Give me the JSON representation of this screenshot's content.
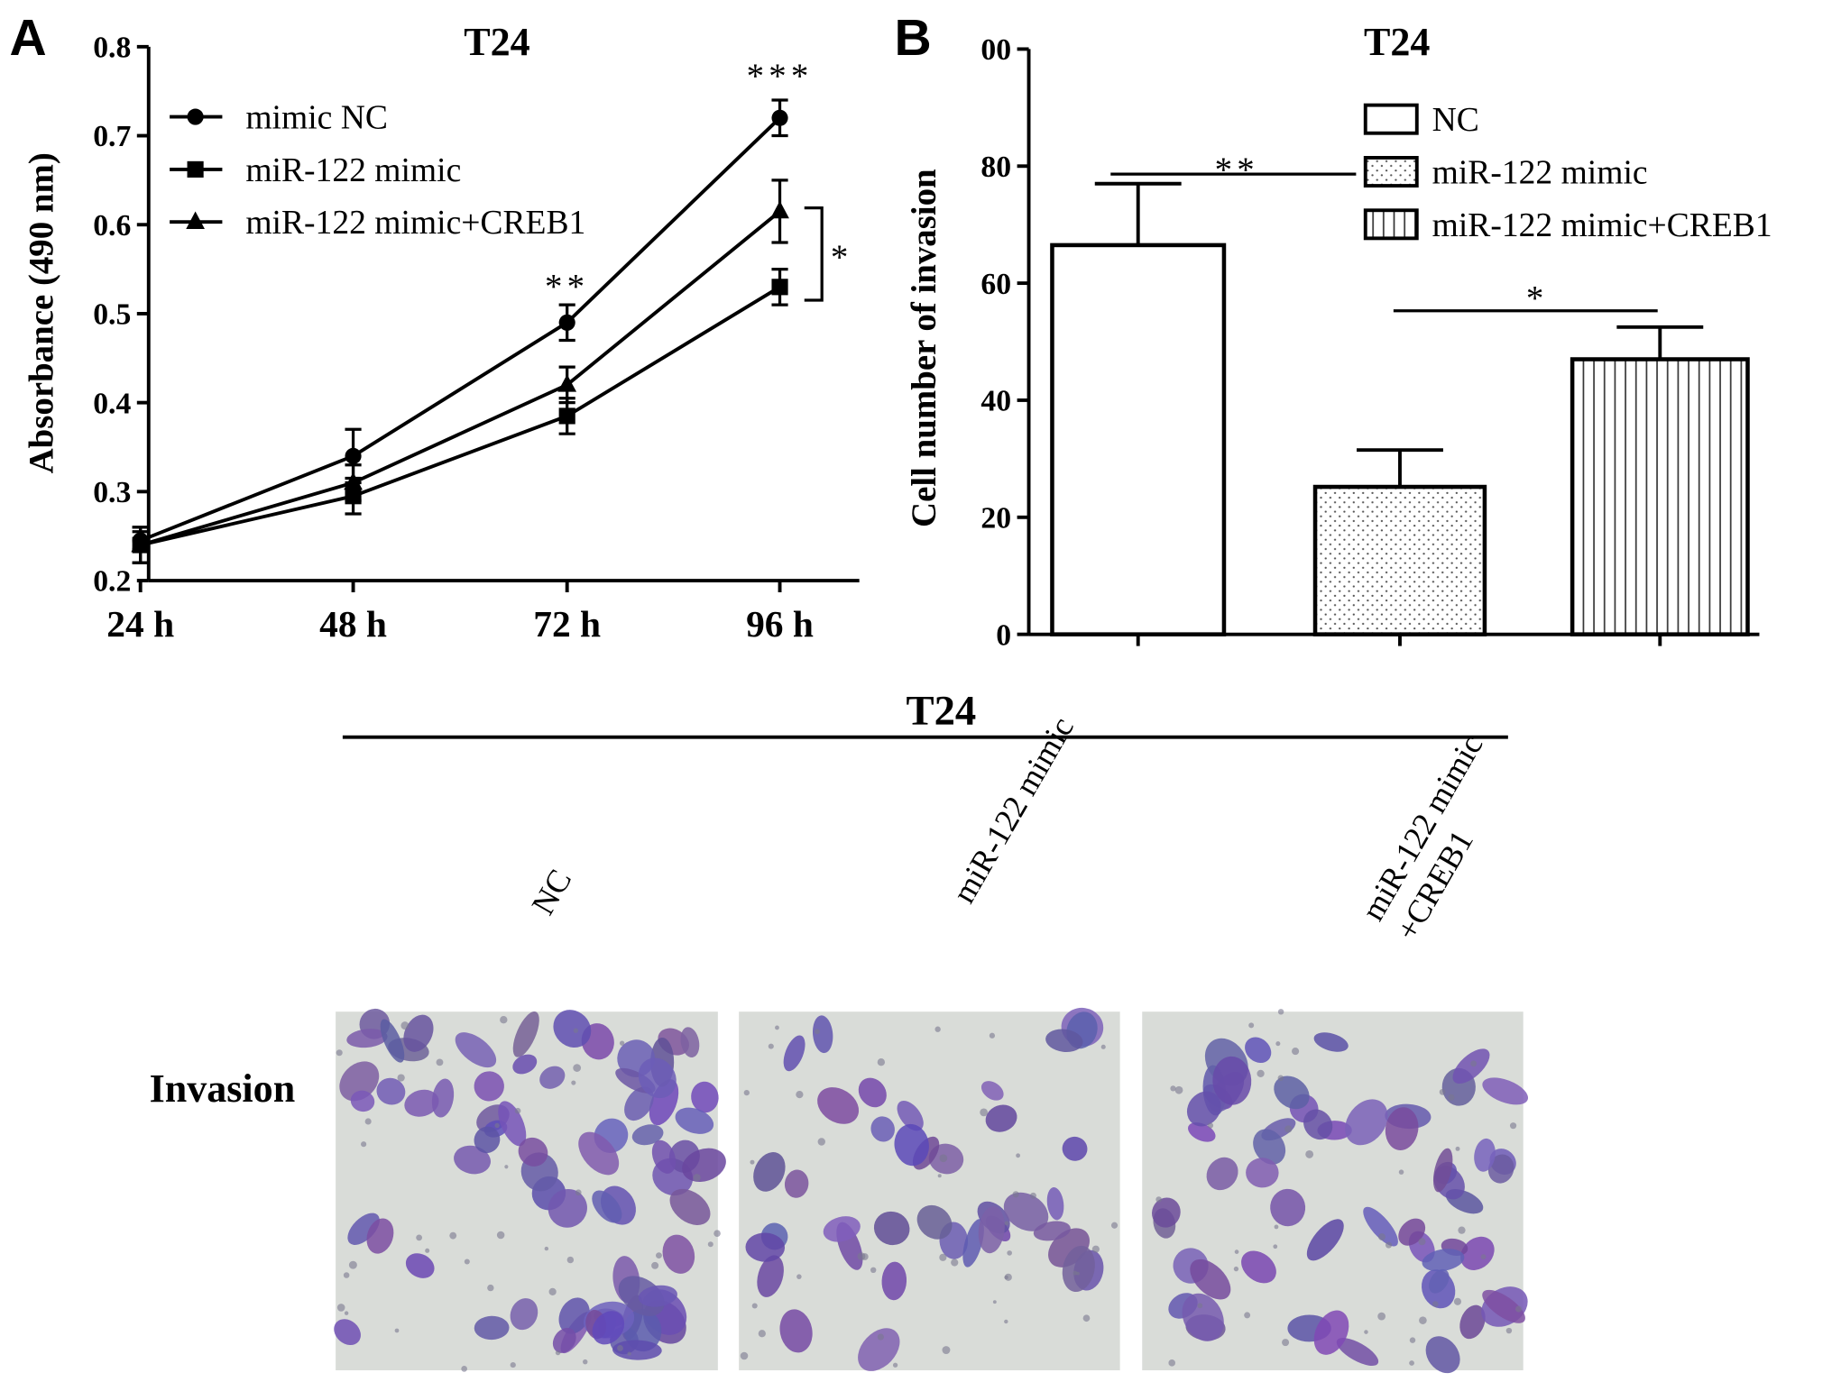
{
  "chart_data": [
    {
      "type": "line",
      "panel": "A",
      "title": "T24",
      "y_label": "Absorbance (490 nm)",
      "categories": [
        "24 h",
        "48 h",
        "72 h",
        "96 h"
      ],
      "ylim": [
        0.2,
        0.8
      ],
      "yticks": [
        0.2,
        0.3,
        0.4,
        0.5,
        0.6,
        0.7,
        0.8
      ],
      "series": [
        {
          "name": "mimic NC",
          "color": "#000000",
          "marker": "circle",
          "values": [
            0.245,
            0.34,
            0.49,
            0.72
          ],
          "errors": [
            0.01,
            0.03,
            0.02,
            0.02
          ]
        },
        {
          "name": "miR-122 mimic",
          "color": "#000000",
          "marker": "square",
          "values": [
            0.24,
            0.295,
            0.385,
            0.53
          ],
          "errors": [
            0.02,
            0.02,
            0.02,
            0.02
          ]
        },
        {
          "name": "miR-122 mimic+CREB1",
          "color": "#000000",
          "marker": "triangle",
          "values": [
            0.24,
            0.31,
            0.42,
            0.615
          ],
          "errors": [
            0.02,
            0.02,
            0.02,
            0.035
          ]
        }
      ],
      "annotations": [
        "**",
        "***",
        "*"
      ]
    },
    {
      "type": "bar",
      "panel": "B",
      "title": "T24",
      "y_label": "Cell number of invasion",
      "categories": [
        null,
        null,
        null
      ],
      "names": [
        "NC",
        "miR-122 mimic",
        "miR-122 mimic+CREB1"
      ],
      "patterns": [
        "none",
        "dots",
        "vlines"
      ],
      "values": [
        66.5,
        25.2,
        47
      ],
      "errors": [
        10.5,
        6.3,
        5.5
      ],
      "ylim": [
        0,
        100
      ],
      "yticks": [
        0,
        20,
        40,
        60,
        80,
        {
          "value": 100,
          "label": "00"
        }
      ],
      "annotations": [
        "**",
        "*"
      ]
    }
  ],
  "images": {
    "title": "T24",
    "row_label": "Invasion",
    "columns": [
      [
        "NC"
      ],
      [
        "miR-122 mimic"
      ],
      [
        "miR-122 mimic",
        "+CREB1"
      ]
    ]
  }
}
